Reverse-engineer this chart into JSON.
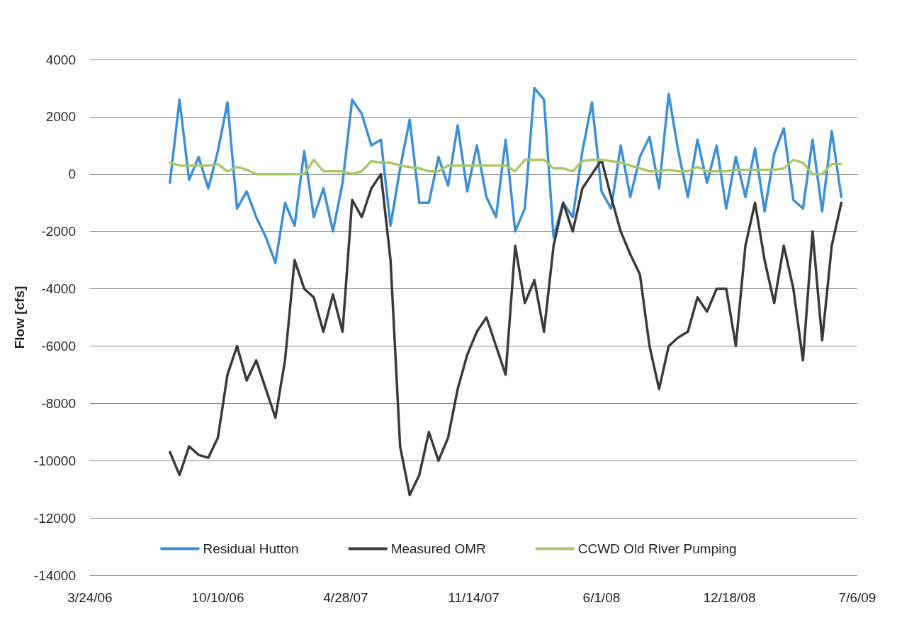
{
  "chart_data": {
    "type": "line",
    "ylabel": "Flow [cfs]",
    "x": [
      "2006-07-27",
      "2006-08-11",
      "2006-08-26",
      "2006-09-10",
      "2006-09-25",
      "2006-10-10",
      "2006-10-25",
      "2006-11-09",
      "2006-11-24",
      "2006-12-09",
      "2006-12-24",
      "2007-01-08",
      "2007-01-23",
      "2007-02-07",
      "2007-02-22",
      "2007-03-09",
      "2007-03-24",
      "2007-04-08",
      "2007-04-23",
      "2007-05-08",
      "2007-05-23",
      "2007-06-07",
      "2007-06-22",
      "2007-07-07",
      "2007-07-22",
      "2007-08-06",
      "2007-08-21",
      "2007-09-05",
      "2007-09-20",
      "2007-10-05",
      "2007-10-20",
      "2007-11-04",
      "2007-11-19",
      "2007-12-04",
      "2007-12-19",
      "2008-01-03",
      "2008-01-18",
      "2008-02-02",
      "2008-02-17",
      "2008-03-03",
      "2008-03-18",
      "2008-04-02",
      "2008-04-17",
      "2008-05-02",
      "2008-05-17",
      "2008-06-01",
      "2008-06-16",
      "2008-07-01",
      "2008-07-16",
      "2008-07-31",
      "2008-08-15",
      "2008-08-30",
      "2008-09-14",
      "2008-09-29",
      "2008-10-14",
      "2008-10-29",
      "2008-11-13",
      "2008-11-28",
      "2008-12-13",
      "2008-12-28",
      "2009-01-12",
      "2009-01-27",
      "2009-02-11",
      "2009-02-26",
      "2009-03-13",
      "2009-03-28",
      "2009-04-12",
      "2009-04-27",
      "2009-05-12",
      "2009-05-27",
      "2009-06-11"
    ],
    "series": [
      {
        "name": "Residual Hutton",
        "color": "#3d8fd6",
        "values": [
          -300,
          2600,
          -200,
          600,
          -500,
          800,
          2500,
          -1200,
          -600,
          -1500,
          -2200,
          -3100,
          -1000,
          -1800,
          800,
          -1500,
          -500,
          -2000,
          -300,
          2600,
          2100,
          1000,
          1200,
          -1800,
          200,
          1900,
          -1000,
          -1000,
          600,
          -400,
          1700,
          -600,
          1000,
          -800,
          -1500,
          1200,
          -2000,
          -1200,
          3000,
          2600,
          -2200,
          -1000,
          -1500,
          800,
          2500,
          -600,
          -1200,
          1000,
          -800,
          600,
          1300,
          -500,
          2800,
          800,
          -800,
          1200,
          -300,
          1000,
          -1200,
          600,
          -800,
          900,
          -1300,
          700,
          1600,
          -900,
          -1200,
          1200,
          -1300,
          1500,
          -800
        ]
      },
      {
        "name": "Measured OMR",
        "color": "#3a3a3a",
        "values": [
          -9700,
          -10500,
          -9500,
          -9800,
          -9900,
          -9200,
          -7000,
          -6000,
          -7200,
          -6500,
          -7500,
          -8500,
          -6500,
          -3000,
          -4000,
          -4300,
          -5500,
          -4200,
          -5500,
          -900,
          -1500,
          -500,
          0,
          -3000,
          -9500,
          -11200,
          -10500,
          -9000,
          -10000,
          -9200,
          -7500,
          -6300,
          -5500,
          -5000,
          -6000,
          -7000,
          -2500,
          -4500,
          -3700,
          -5500,
          -2500,
          -1000,
          -2000,
          -500,
          0,
          500,
          -800,
          -2000,
          -2800,
          -3500,
          -6000,
          -7500,
          -6000,
          -5700,
          -5500,
          -4300,
          -4800,
          -4000,
          -4000,
          -6000,
          -2500,
          -1000,
          -3000,
          -4500,
          -2500,
          -4000,
          -6500,
          -2000,
          -5800,
          -2500,
          -1000
        ]
      },
      {
        "name": "CCWD Old River Pumping",
        "color": "#a9c76a",
        "values": [
          400,
          300,
          300,
          300,
          300,
          350,
          100,
          250,
          150,
          0,
          0,
          0,
          0,
          0,
          0,
          500,
          100,
          100,
          100,
          0,
          100,
          450,
          400,
          400,
          300,
          250,
          200,
          100,
          100,
          300,
          300,
          300,
          300,
          300,
          300,
          300,
          100,
          500,
          500,
          500,
          200,
          200,
          100,
          450,
          500,
          500,
          450,
          400,
          300,
          200,
          100,
          100,
          150,
          100,
          100,
          250,
          100,
          100,
          100,
          150,
          150,
          150,
          150,
          150,
          200,
          500,
          400,
          0,
          0,
          350,
          350
        ]
      }
    ],
    "xlim": [
      "2006-03-24",
      "2009-07-06"
    ],
    "xticks": [
      {
        "value": "2006-03-24",
        "label": "3/24/06"
      },
      {
        "value": "2006-10-10",
        "label": "10/10/06"
      },
      {
        "value": "2007-04-28",
        "label": "4/28/07"
      },
      {
        "value": "2007-11-14",
        "label": "11/14/07"
      },
      {
        "value": "2008-06-01",
        "label": "6/1/08"
      },
      {
        "value": "2008-12-18",
        "label": "12/18/08"
      },
      {
        "value": "2009-07-06",
        "label": "7/6/09"
      }
    ],
    "ylim": [
      -14000,
      4000
    ],
    "yticks": [
      -14000,
      -12000,
      -10000,
      -8000,
      -6000,
      -4000,
      -2000,
      0,
      2000,
      4000
    ],
    "grid": "y",
    "legend": "bottom",
    "marker": "none",
    "line_style": "solid"
  }
}
